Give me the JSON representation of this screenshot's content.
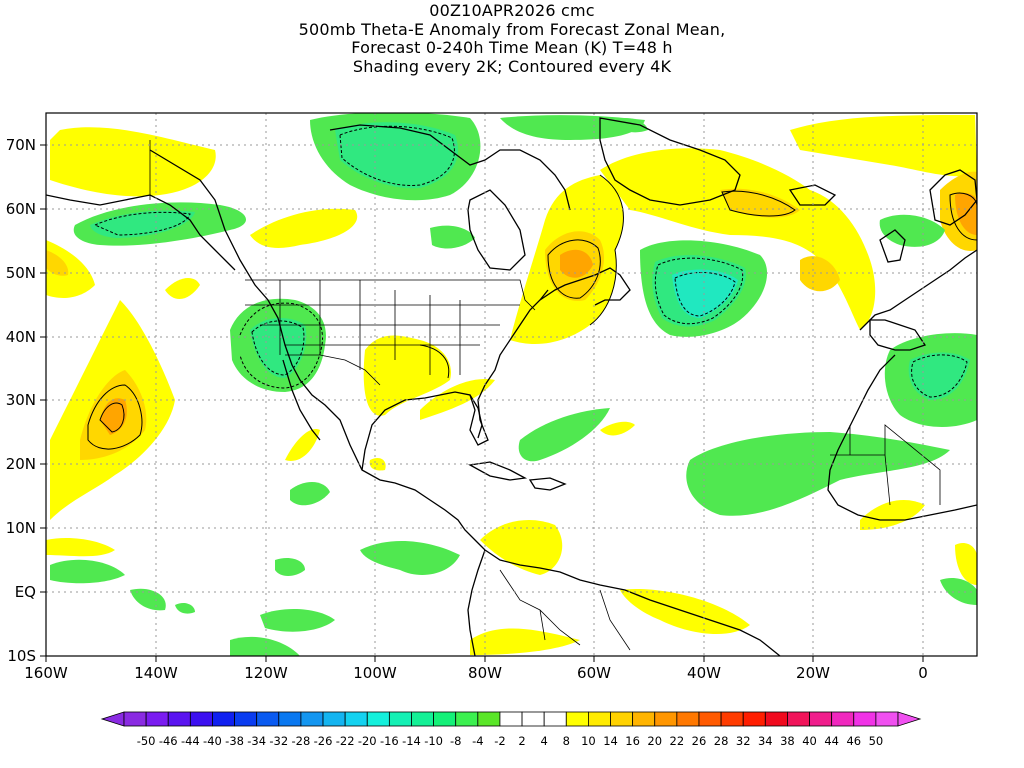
{
  "title": {
    "line1": "00Z10APR2026 cmc",
    "line2": "500mb Theta-E Anomaly from Forecast Zonal Mean,",
    "line3": "Forecast 0-240h Time Mean (K) T=48 h",
    "line4": "Shading every 2K; Contoured every 4K"
  },
  "map": {
    "lon_range": [
      -160,
      10
    ],
    "lat_range": [
      -10,
      75
    ],
    "lat_ticks": [
      "70N",
      "60N",
      "50N",
      "40N",
      "30N",
      "20N",
      "10N",
      "EQ",
      "10S"
    ],
    "lon_ticks": [
      "160W",
      "140W",
      "120W",
      "100W",
      "80W",
      "60W",
      "40W",
      "20W",
      "0"
    ],
    "gridlines": "dotted",
    "projection": "cylindrical"
  },
  "colorbar": {
    "labels": [
      "-50",
      "-46",
      "-44",
      "-40",
      "-38",
      "-34",
      "-32",
      "-28",
      "-26",
      "-22",
      "-20",
      "-16",
      "-14",
      "-10",
      "-8",
      "-4",
      "-2",
      "2",
      "4",
      "8",
      "10",
      "14",
      "16",
      "20",
      "22",
      "26",
      "28",
      "32",
      "34",
      "38",
      "40",
      "44",
      "46",
      "50"
    ],
    "colors": [
      "#8a2be2",
      "#7a1cf0",
      "#5a14f0",
      "#3c10f0",
      "#1020f0",
      "#0a3cf0",
      "#0a5af0",
      "#0a78f0",
      "#1496f0",
      "#14b4f0",
      "#14d2f0",
      "#14f0dc",
      "#14f0b4",
      "#14f096",
      "#14f078",
      "#3cf050",
      "#5ae628",
      "#ffffff",
      "#ffffff",
      "#ffffff",
      "#ffff00",
      "#ffeb00",
      "#ffd200",
      "#ffb400",
      "#ff9600",
      "#ff7800",
      "#ff5a00",
      "#ff3c00",
      "#ff1e00",
      "#f00a1e",
      "#f0145a",
      "#f01e8c",
      "#f028be",
      "#f032e6",
      "#f050f0"
    ],
    "left_arrow_color": "#8a2be2",
    "right_arrow_color": "#f050f0"
  },
  "colors": {
    "positive_light": "#ffff00",
    "positive_mid": "#ffd700",
    "positive_strong": "#ffa500",
    "negative_light": "#50e850",
    "negative_mid": "#30e880",
    "negative_strong": "#20e8c0",
    "land_outline": "#000000",
    "grid": "#9a9a9a"
  }
}
